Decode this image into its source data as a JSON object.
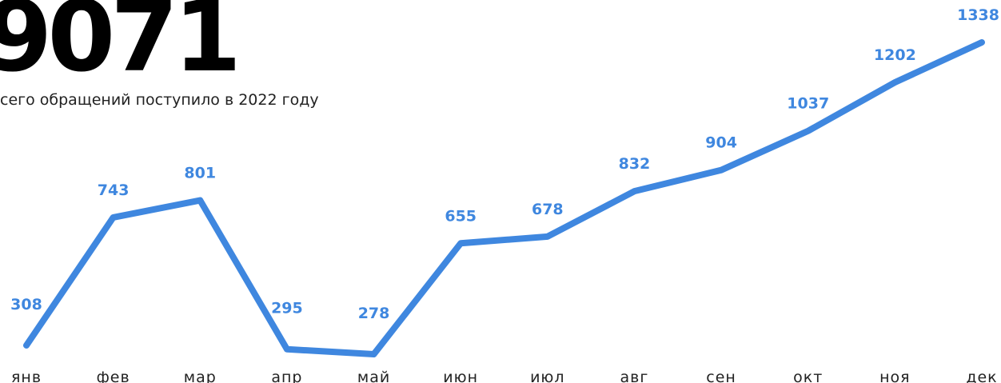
{
  "chart_data": {
    "type": "line",
    "title": "9071",
    "subtitle": "сего обращений поступило в 2022 году",
    "categories": [
      "янв",
      "фев",
      "мар",
      "апр",
      "май",
      "июн",
      "июл",
      "авг",
      "сен",
      "окт",
      "ноя",
      "дек"
    ],
    "values": [
      308,
      743,
      801,
      295,
      278,
      655,
      678,
      832,
      904,
      1037,
      1202,
      1338
    ],
    "color": "#3f87df"
  }
}
